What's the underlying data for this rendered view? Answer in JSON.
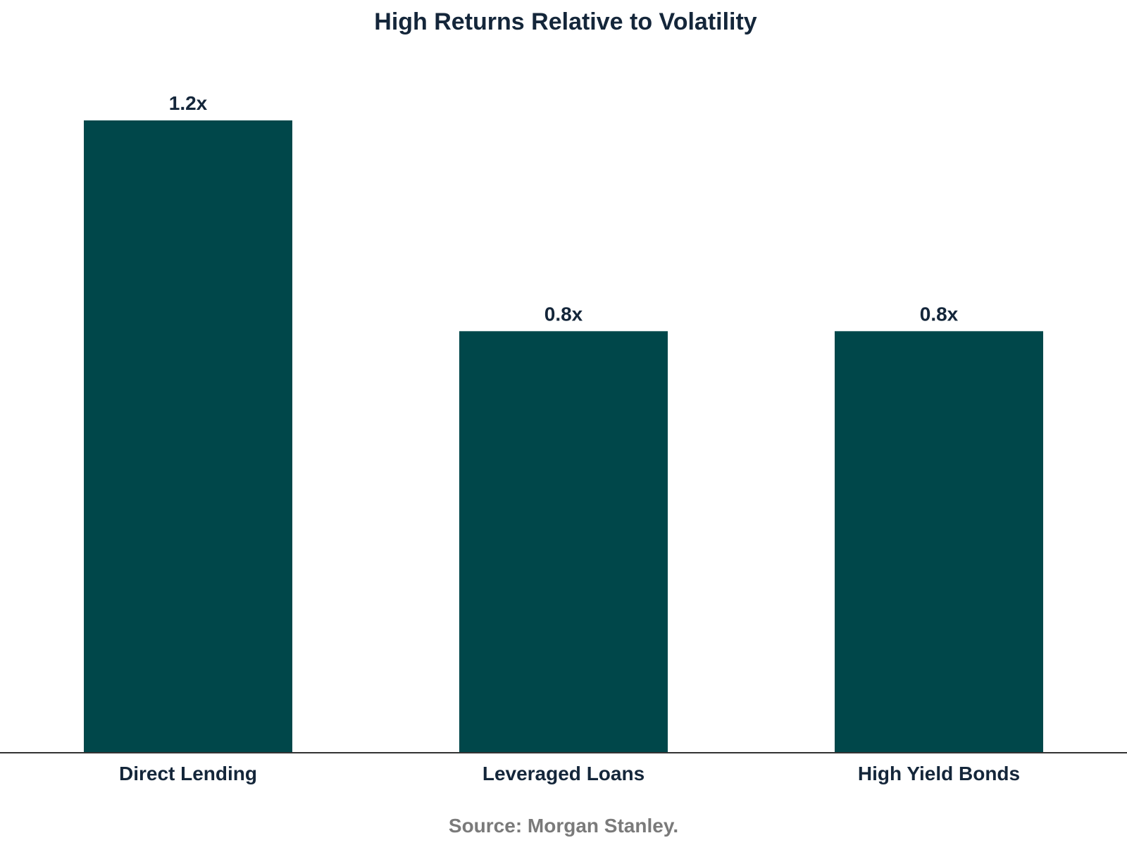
{
  "chart_data": {
    "type": "bar",
    "title": "High Returns Relative to Volatility",
    "categories": [
      "Direct Lending",
      "Leveraged Loans",
      "High Yield Bonds"
    ],
    "values": [
      1.2,
      0.8,
      0.8
    ],
    "data_labels": [
      "1.2x",
      "0.8x",
      "0.8x"
    ],
    "xlabel": "",
    "ylabel": "",
    "ylim": [
      0,
      1.2
    ],
    "grid": false,
    "legend": "none",
    "bar_color": "#00474a",
    "source": "Source: Morgan Stanley."
  }
}
